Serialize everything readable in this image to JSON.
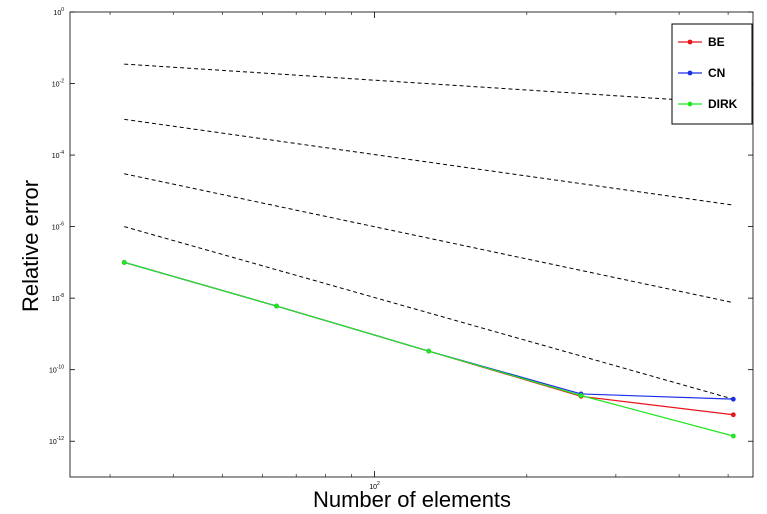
{
  "chart_data": {
    "type": "line",
    "title": "",
    "xlabel": "Number of elements",
    "ylabel": "Relative error",
    "x_scale": "log",
    "y_scale": "log",
    "xlim": [
      25,
      560
    ],
    "ylim": [
      1e-13,
      1
    ],
    "x_ticks": [
      {
        "value": 100,
        "label_base": "10",
        "label_exp": "2"
      }
    ],
    "y_ticks": [
      {
        "value": 1,
        "label_base": "10",
        "label_exp": "0"
      },
      {
        "value": 0.01,
        "label_base": "10",
        "label_exp": "-2"
      },
      {
        "value": 0.0001,
        "label_base": "10",
        "label_exp": "-4"
      },
      {
        "value": 1e-06,
        "label_base": "10",
        "label_exp": "-6"
      },
      {
        "value": 1e-08,
        "label_base": "10",
        "label_exp": "-8"
      },
      {
        "value": 1e-10,
        "label_base": "10",
        "label_exp": "-10"
      },
      {
        "value": 1e-12,
        "label_base": "10",
        "label_exp": "-12"
      }
    ],
    "x_minor_ticks": [
      30,
      40,
      50,
      60,
      70,
      80,
      90,
      200,
      300,
      400,
      500
    ],
    "grid": false,
    "legend_position": "top-right",
    "series": [
      {
        "name": "BE",
        "color": "#e8141b",
        "x": [
          32,
          64,
          128,
          256,
          512
        ],
        "y": [
          1e-07,
          6e-09,
          3.3e-10,
          1.8e-11,
          5.5e-12
        ]
      },
      {
        "name": "CN",
        "color": "#1a2ee6",
        "x": [
          32,
          64,
          128,
          256,
          512
        ],
        "y": [
          1e-07,
          6e-09,
          3.3e-10,
          2.1e-11,
          1.5e-11
        ]
      },
      {
        "name": "DIRK",
        "color": "#22e622",
        "x": [
          32,
          64,
          128,
          256,
          512
        ],
        "y": [
          1e-07,
          6e-09,
          3.3e-10,
          1.9e-11,
          1.4e-12
        ]
      }
    ],
    "reference_lines": [
      {
        "style": "dashed",
        "color": "#000000",
        "x": [
          32,
          512
        ],
        "y": [
          0.035,
          0.0028
        ]
      },
      {
        "style": "dashed",
        "color": "#000000",
        "x": [
          32,
          512
        ],
        "y": [
          0.001,
          4e-06
        ]
      },
      {
        "style": "dashed",
        "color": "#000000",
        "x": [
          32,
          512
        ],
        "y": [
          3e-05,
          7.5e-09
        ]
      },
      {
        "style": "dashed",
        "color": "#000000",
        "x": [
          32,
          512
        ],
        "y": [
          1e-06,
          1.5e-11
        ]
      }
    ]
  }
}
